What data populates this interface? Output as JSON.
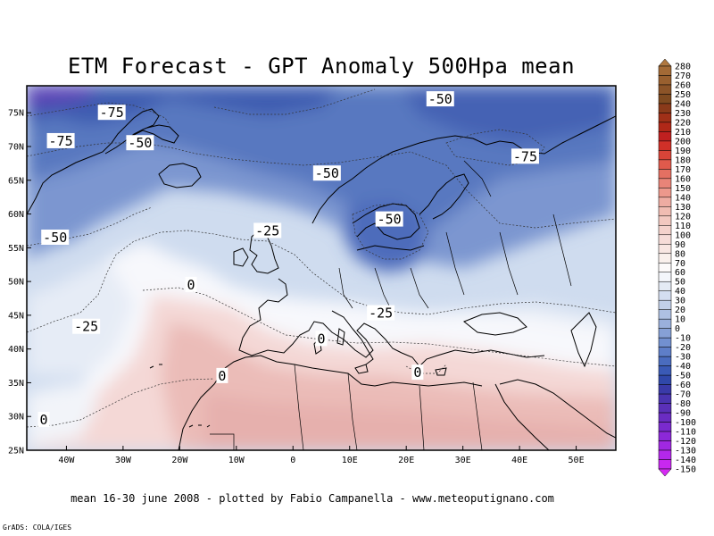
{
  "title": "ETM Forecast - GPT Anomaly 500Hpa mean",
  "caption": "mean 16-30 june 2008 - plotted by Fabio Campanella - www.meteoputignano.com",
  "credit": "GrADS: COLA/IGES",
  "map": {
    "lon_range": [
      -47,
      57
    ],
    "lat_range": [
      25,
      79
    ],
    "x_ticks": [
      {
        "value": -40,
        "label": "40W"
      },
      {
        "value": -30,
        "label": "30W"
      },
      {
        "value": -20,
        "label": "20W"
      },
      {
        "value": -10,
        "label": "10W"
      },
      {
        "value": 0,
        "label": "0"
      },
      {
        "value": 10,
        "label": "10E"
      },
      {
        "value": 20,
        "label": "20E"
      },
      {
        "value": 30,
        "label": "30E"
      },
      {
        "value": 40,
        "label": "40E"
      },
      {
        "value": 50,
        "label": "50E"
      }
    ],
    "y_ticks": [
      {
        "value": 25,
        "label": "25N"
      },
      {
        "value": 30,
        "label": "30N"
      },
      {
        "value": 35,
        "label": "35N"
      },
      {
        "value": 40,
        "label": "40N"
      },
      {
        "value": 45,
        "label": "45N"
      },
      {
        "value": 50,
        "label": "50N"
      },
      {
        "value": 55,
        "label": "55N"
      },
      {
        "value": 60,
        "label": "60N"
      },
      {
        "value": 65,
        "label": "65N"
      },
      {
        "value": 70,
        "label": "70N"
      },
      {
        "value": 75,
        "label": "75N"
      }
    ],
    "contour_labels": [
      {
        "text": "-75",
        "lon": -32,
        "lat": 75
      },
      {
        "text": "-75",
        "lon": -41,
        "lat": 70.8
      },
      {
        "text": "-50",
        "lon": -27,
        "lat": 70.5
      },
      {
        "text": "-50",
        "lon": 26,
        "lat": 77
      },
      {
        "text": "-75",
        "lon": 41,
        "lat": 68.5
      },
      {
        "text": "-50",
        "lon": 6,
        "lat": 66
      },
      {
        "text": "-50",
        "lon": 17,
        "lat": 59.2
      },
      {
        "text": "-25",
        "lon": -4.5,
        "lat": 57.5
      },
      {
        "text": "-50",
        "lon": -42,
        "lat": 56.5
      },
      {
        "text": "-25",
        "lon": 15.5,
        "lat": 45.3
      },
      {
        "text": "-25",
        "lon": -36.5,
        "lat": 43.3
      },
      {
        "text": "0",
        "lon": -18,
        "lat": 49.5
      },
      {
        "text": "0",
        "lon": 5,
        "lat": 41.5
      },
      {
        "text": "0",
        "lon": -12.5,
        "lat": 36
      },
      {
        "text": "0",
        "lon": 22,
        "lat": 36.5
      },
      {
        "text": "0",
        "lon": -44,
        "lat": 29.5
      }
    ]
  },
  "colorbar": {
    "labels": [
      "280",
      "270",
      "260",
      "250",
      "240",
      "230",
      "220",
      "210",
      "200",
      "190",
      "180",
      "170",
      "160",
      "150",
      "140",
      "130",
      "120",
      "110",
      "100",
      "90",
      "80",
      "70",
      "60",
      "50",
      "40",
      "30",
      "20",
      "10",
      "0",
      "-10",
      "-20",
      "-30",
      "-40",
      "-50",
      "-60",
      "-70",
      "-80",
      "-90",
      "-100",
      "-110",
      "-120",
      "-130",
      "-140",
      "-150"
    ],
    "colors": [
      "#b07840",
      "#a36a36",
      "#99602f",
      "#8c5428",
      "#7f4a20",
      "#8a3a1a",
      "#a03018",
      "#b02818",
      "#c02020",
      "#d03028",
      "#d84438",
      "#e05a4c",
      "#e47062",
      "#e88478",
      "#ec988c",
      "#eeaca2",
      "#f0bcb2",
      "#f2c8c0",
      "#f4d2cc",
      "#f6dcd8",
      "#f8e6e2",
      "#faf0ec",
      "#fdfafa",
      "#f4f6fb",
      "#e4eaf4",
      "#d4def0",
      "#c2d0e9",
      "#aec0e2",
      "#9ab0dc",
      "#86a0d6",
      "#7290d0",
      "#5e7ec8",
      "#4a6cbf",
      "#3a5ab6",
      "#3048aa",
      "#3a3aa8",
      "#4a34b0",
      "#5a30b8",
      "#6a2cc2",
      "#7a2ace",
      "#8c28d8",
      "#a028e2",
      "#b428ea",
      "#c828f0",
      "#d62af4"
    ]
  },
  "colors": {
    "deep_blue": "#2f4ea8",
    "light_blue": "#c9d6ec",
    "near_white": "#f7f8fc",
    "pale_pink": "#f4d8d6",
    "pink": "#e9b6b2",
    "coastline": "#000000"
  }
}
